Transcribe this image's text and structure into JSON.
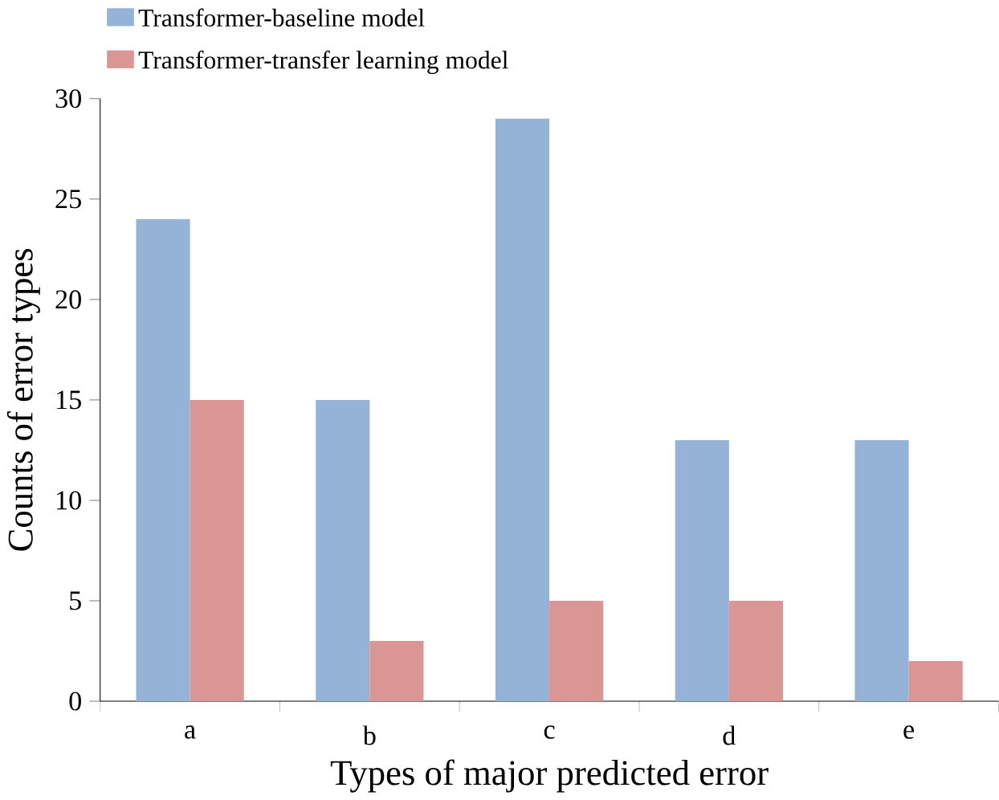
{
  "chart_data": {
    "type": "bar",
    "xlabel": "Types of major predicted error",
    "ylabel": "Counts of error types",
    "categories": [
      "a",
      "b",
      "c",
      "d",
      "e"
    ],
    "series": [
      {
        "name": "Transformer-baseline model",
        "color": "#95b3d7",
        "values": [
          24,
          15,
          29,
          13,
          13
        ]
      },
      {
        "name": "Transformer-transfer learning model",
        "color": "#d99694",
        "values": [
          15,
          3,
          5,
          5,
          2
        ]
      }
    ],
    "ylim": [
      0,
      30
    ],
    "yticks": [
      0,
      5,
      10,
      15,
      20,
      25,
      30
    ],
    "grid": false,
    "legend": "top left"
  }
}
